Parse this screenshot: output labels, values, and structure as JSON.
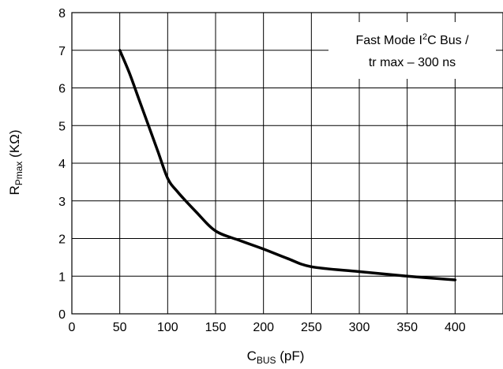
{
  "chart_data": {
    "type": "line",
    "xlabel": {
      "main": "C",
      "sub": "BUS",
      "unit": " (pF)"
    },
    "ylabel": {
      "main": "R",
      "sub": "Pmax",
      "unit": " (KΩ)"
    },
    "xlim": [
      0,
      450
    ],
    "ylim": [
      0,
      8
    ],
    "x_ticks": [
      0,
      50,
      100,
      150,
      200,
      250,
      300,
      350,
      400
    ],
    "y_ticks": [
      0,
      1,
      2,
      3,
      4,
      5,
      6,
      7,
      8
    ],
    "grid": true,
    "annotation": {
      "line1_pre": "Fast Mode I",
      "line1_sup": "2",
      "line1_post": "C Bus /",
      "line2": "tr max – 300 ns",
      "placement": "top-right"
    },
    "series": [
      {
        "color": "#000000",
        "x": [
          50,
          60,
          70,
          80,
          90,
          100,
          110,
          130,
          150,
          175,
          200,
          225,
          250,
          300,
          350,
          400
        ],
        "y": [
          7.0,
          6.4,
          5.7,
          5.0,
          4.3,
          3.6,
          3.25,
          2.7,
          2.2,
          1.95,
          1.72,
          1.47,
          1.25,
          1.12,
          1.0,
          0.9
        ]
      }
    ]
  }
}
